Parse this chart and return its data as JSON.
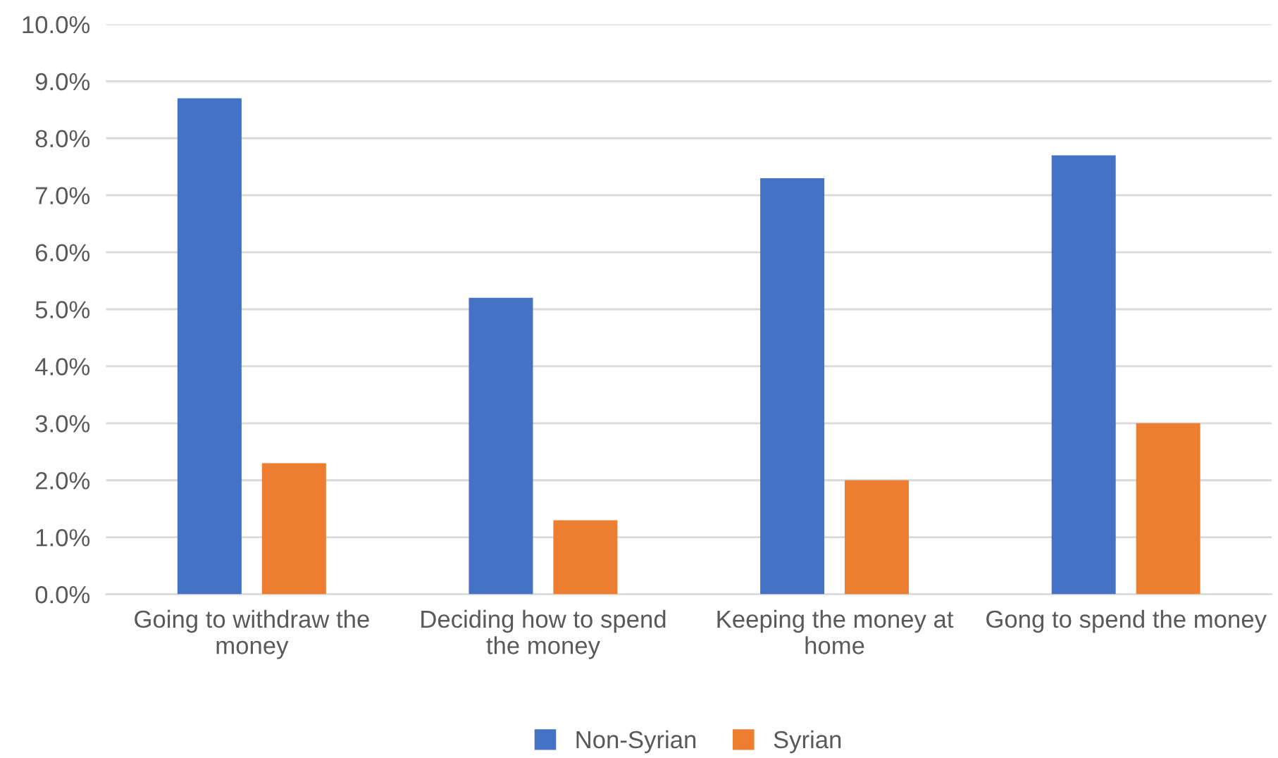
{
  "chart_data": {
    "type": "bar",
    "categories": [
      "Going to withdraw the money",
      "Deciding how to spend the money",
      "Keeping the money at home",
      "Gong to spend the money"
    ],
    "series": [
      {
        "name": "Non-Syrian",
        "color": "#4472c4",
        "values": [
          8.7,
          5.2,
          7.3,
          7.7
        ]
      },
      {
        "name": "Syrian",
        "color": "#ed7d31",
        "values": [
          2.3,
          1.3,
          2.0,
          3.0
        ]
      }
    ],
    "ylim": [
      0,
      10
    ],
    "yticks": [
      {
        "value": 0,
        "label": "0.0%"
      },
      {
        "value": 1,
        "label": "1.0%"
      },
      {
        "value": 2,
        "label": "2.0%"
      },
      {
        "value": 3,
        "label": "3.0%"
      },
      {
        "value": 4,
        "label": "4.0%"
      },
      {
        "value": 5,
        "label": "5.0%"
      },
      {
        "value": 6,
        "label": "6.0%"
      },
      {
        "value": 7,
        "label": "7.0%"
      },
      {
        "value": 8,
        "label": "8.0%"
      },
      {
        "value": 9,
        "label": "9.0%"
      },
      {
        "value": 10,
        "label": "10.0%"
      }
    ],
    "grid": "y",
    "legend": "bottom"
  }
}
